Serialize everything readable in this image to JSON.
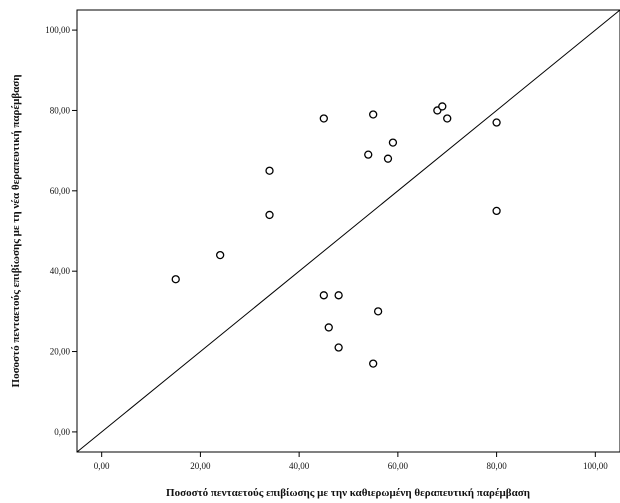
{
  "chart_data": {
    "type": "scatter",
    "title": "",
    "xlabel": "Ποσοστό πενταετούς επιβίωσης με την καθιερωμένη θεραπευτική παρέμβαση",
    "ylabel": "Ποσοστό πενταετούς επιβίωσης με τη νέα θεραπευτική παρέμβαση",
    "xlim": [
      -5,
      105
    ],
    "ylim": [
      -5,
      105
    ],
    "x_ticks": [
      "0,00",
      "20,00",
      "40,00",
      "60,00",
      "80,00",
      "100,00"
    ],
    "y_ticks": [
      "0,00",
      "20,00",
      "40,00",
      "60,00",
      "80,00",
      "100,00"
    ],
    "grid": false,
    "reference_line": {
      "from": [
        -5,
        -5
      ],
      "to": [
        105,
        105
      ]
    },
    "points": [
      {
        "x": 15,
        "y": 38
      },
      {
        "x": 24,
        "y": 44
      },
      {
        "x": 34,
        "y": 65
      },
      {
        "x": 34,
        "y": 54
      },
      {
        "x": 45,
        "y": 78
      },
      {
        "x": 45,
        "y": 34
      },
      {
        "x": 46,
        "y": 26
      },
      {
        "x": 48,
        "y": 34
      },
      {
        "x": 48,
        "y": 21
      },
      {
        "x": 54,
        "y": 69
      },
      {
        "x": 55,
        "y": 79
      },
      {
        "x": 55,
        "y": 17
      },
      {
        "x": 56,
        "y": 30
      },
      {
        "x": 58,
        "y": 68
      },
      {
        "x": 59,
        "y": 72
      },
      {
        "x": 68,
        "y": 80
      },
      {
        "x": 69,
        "y": 81
      },
      {
        "x": 70,
        "y": 78
      },
      {
        "x": 80,
        "y": 77
      },
      {
        "x": 80,
        "y": 55
      }
    ]
  }
}
